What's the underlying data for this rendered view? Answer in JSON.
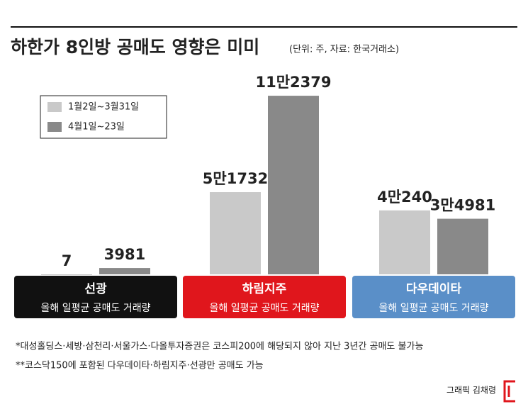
{
  "chart_data": {
    "type": "bar",
    "title": "하한가 8인방 공매도 영향은 미미",
    "subtitle": "(단위: 주, 자료: 한국거래소)",
    "categories": [
      "선광",
      "하림지주",
      "다우데이타"
    ],
    "category_subtitle": "올해 일평균 공매도 거래량",
    "category_colors": [
      "#111111",
      "#e0161c",
      "#5a8fc8"
    ],
    "series": [
      {
        "name": "1월2일~3월31일",
        "color": "#c9c9c9",
        "values": [
          7,
          51732,
          40240
        ],
        "value_labels": [
          "7",
          "5만1732",
          "4만240"
        ]
      },
      {
        "name": "4월1일~23일",
        "color": "#898989",
        "values": [
          3981,
          112379,
          34981
        ],
        "value_labels": [
          "3981",
          "11만2379",
          "3만4981"
        ]
      }
    ],
    "ylim": [
      0,
      120000
    ],
    "footnotes": [
      "*대성홀딩스·세방·삼천리·서울가스·다올투자증권은 코스피200에 해당되지 않아 지난 3년간 공매도 불가능",
      "**코스닥150에 포함된 다우데이타·하림지주·선광만 공매도 가능"
    ],
    "credit": "그래픽 김채령"
  }
}
